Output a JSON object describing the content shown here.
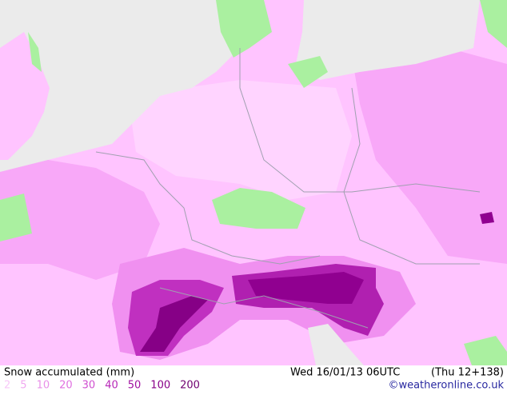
{
  "header": {
    "title": "Snow accumulated (mm)",
    "valid": "Wed 16/01/13 06UTC",
    "forecast": "(Thu 12+138)"
  },
  "legend": [
    {
      "label": "2",
      "color": "#f8c8f8"
    },
    {
      "label": "5",
      "color": "#f0a8f0"
    },
    {
      "label": "10",
      "color": "#e890e8"
    },
    {
      "label": "20",
      "color": "#e070e0"
    },
    {
      "label": "30",
      "color": "#d050d0"
    },
    {
      "label": "40",
      "color": "#b828b8"
    },
    {
      "label": "50",
      "color": "#a010a0"
    },
    {
      "label": "100",
      "color": "#880088"
    },
    {
      "label": "200",
      "color": "#700070"
    }
  ],
  "credit": "©weatheronline.co.uk"
}
